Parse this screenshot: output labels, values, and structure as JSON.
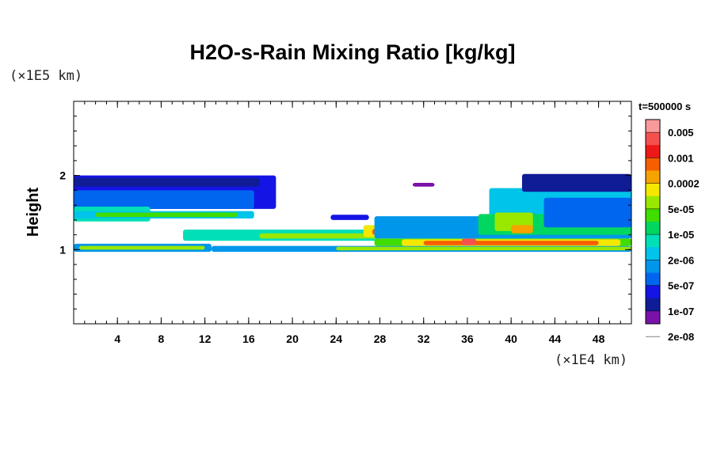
{
  "chart_data": {
    "type": "heatmap",
    "title": "H2O-s-Rain Mixing Ratio [kg/kg]",
    "ylabel": "Height",
    "y_unit": "(×1E5 km)",
    "x_unit": "(×1E4 km)",
    "time_label": "t=500000 s",
    "xlim": [
      0,
      51
    ],
    "ylim": [
      0,
      3
    ],
    "x_ticks": [
      4,
      8,
      12,
      16,
      20,
      24,
      28,
      32,
      36,
      40,
      44,
      48
    ],
    "x_tick_labels": [
      "4",
      "8",
      "12",
      "16",
      "20",
      "24",
      "28",
      "32",
      "36",
      "40",
      "44",
      "48"
    ],
    "y_ticks": [
      1,
      2
    ],
    "y_tick_labels": [
      "1",
      "2"
    ],
    "x_minor_step": 1,
    "y_minor_step": 0.2,
    "colorbar": {
      "labels": [
        "0.005",
        "0.001",
        "0.0002",
        "5e-05",
        "1e-05",
        "2e-06",
        "5e-07",
        "1e-07",
        "2e-08"
      ],
      "colors": [
        "#f99a9a",
        "#f55050",
        "#ee1818",
        "#f65f00",
        "#f6a200",
        "#f5e800",
        "#9ae800",
        "#40dd00",
        "#00d660",
        "#00dfb8",
        "#00c4ea",
        "#0097ea",
        "#0066f0",
        "#1414e4",
        "#101c96",
        "#7a12aa"
      ]
    },
    "regions": [
      {
        "x": [
          0,
          12.6
        ],
        "y": [
          0.97,
          1.08
        ],
        "level": 4
      },
      {
        "x": [
          0.5,
          12
        ],
        "y": [
          1.0,
          1.05
        ],
        "level": 9
      },
      {
        "x": [
          12.6,
          51
        ],
        "y": [
          0.97,
          1.05
        ],
        "level": 4
      },
      {
        "x": [
          24,
          51
        ],
        "y": [
          0.99,
          1.04
        ],
        "level": 9
      },
      {
        "x": [
          0,
          18.5
        ],
        "y": [
          1.55,
          2.0
        ],
        "level": 2
      },
      {
        "x": [
          0,
          17
        ],
        "y": [
          1.85,
          1.97
        ],
        "level": 1
      },
      {
        "x": [
          0,
          16.5
        ],
        "y": [
          1.55,
          1.8
        ],
        "level": 3
      },
      {
        "x": [
          0,
          7
        ],
        "y": [
          1.38,
          1.58
        ],
        "level": 6
      },
      {
        "x": [
          0,
          16.5
        ],
        "y": [
          1.42,
          1.52
        ],
        "level": 5
      },
      {
        "x": [
          2,
          15
        ],
        "y": [
          1.44,
          1.5
        ],
        "level": 8
      },
      {
        "x": [
          23.5,
          27
        ],
        "y": [
          1.4,
          1.47
        ],
        "level": 2
      },
      {
        "x": [
          10,
          28
        ],
        "y": [
          1.12,
          1.27
        ],
        "level": 6
      },
      {
        "x": [
          17,
          28
        ],
        "y": [
          1.15,
          1.22
        ],
        "level": 9
      },
      {
        "x": [
          26.5,
          29
        ],
        "y": [
          1.17,
          1.33
        ],
        "level": 10
      },
      {
        "x": [
          27.3,
          28.4
        ],
        "y": [
          1.2,
          1.28
        ],
        "level": 12
      },
      {
        "x": [
          27.5,
          51
        ],
        "y": [
          1.05,
          1.15
        ],
        "level": 8
      },
      {
        "x": [
          30,
          50
        ],
        "y": [
          1.05,
          1.14
        ],
        "level": 10
      },
      {
        "x": [
          32,
          48
        ],
        "y": [
          1.06,
          1.12
        ],
        "level": 12
      },
      {
        "x": [
          35.5,
          36.8
        ],
        "y": [
          1.06,
          1.15
        ],
        "level": 14
      },
      {
        "x": [
          27.5,
          51
        ],
        "y": [
          1.15,
          1.45
        ],
        "level": 4
      },
      {
        "x": [
          38,
          51
        ],
        "y": [
          1.38,
          1.83
        ],
        "level": 5
      },
      {
        "x": [
          37,
          51
        ],
        "y": [
          1.2,
          1.48
        ],
        "level": 7
      },
      {
        "x": [
          38.5,
          42
        ],
        "y": [
          1.25,
          1.5
        ],
        "level": 9
      },
      {
        "x": [
          40,
          42
        ],
        "y": [
          1.22,
          1.33
        ],
        "level": 11
      },
      {
        "x": [
          41,
          51
        ],
        "y": [
          1.78,
          2.02
        ],
        "level": 1
      },
      {
        "x": [
          43,
          51
        ],
        "y": [
          1.3,
          1.7
        ],
        "level": 3
      },
      {
        "x": [
          31,
          33
        ],
        "y": [
          1.85,
          1.9
        ],
        "level": 0
      }
    ]
  }
}
